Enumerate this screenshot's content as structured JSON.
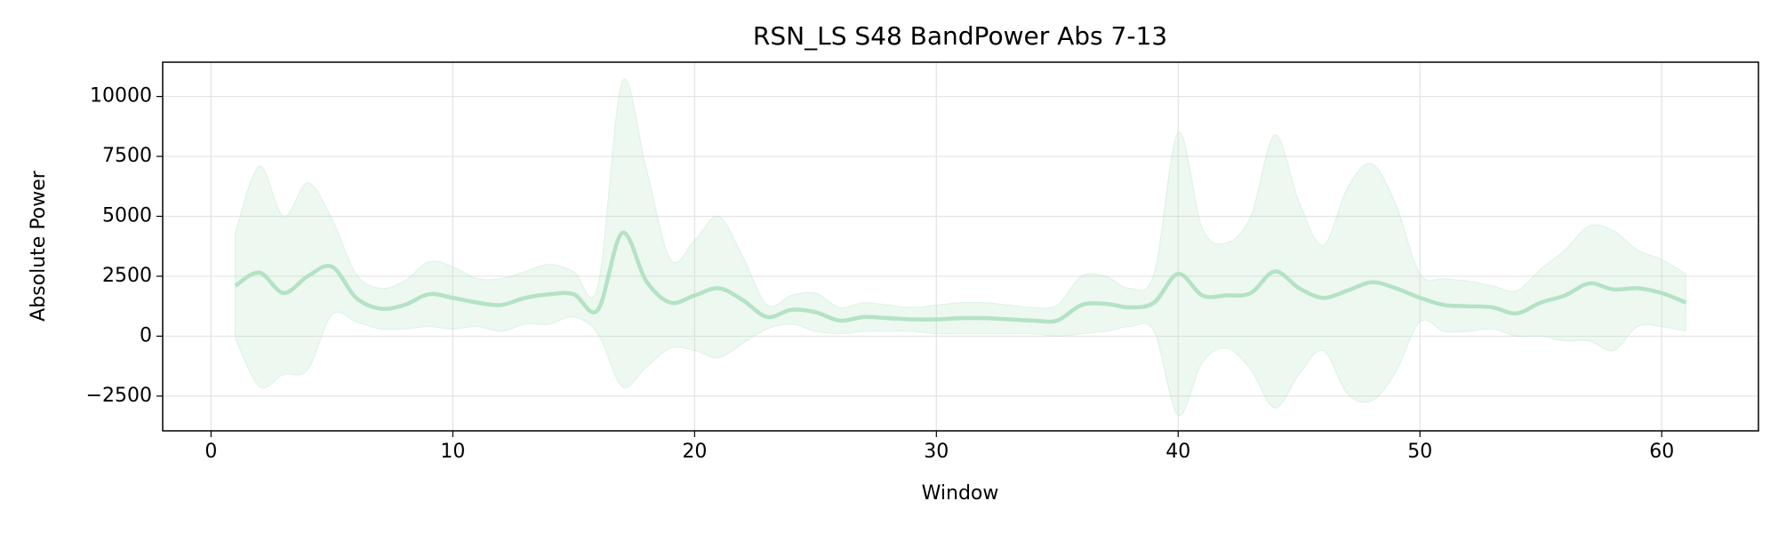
{
  "chart_data": {
    "type": "line",
    "title": "RSN_LS S48 BandPower Abs 7-13",
    "xlabel": "Window",
    "ylabel": "Absolute Power",
    "x": [
      1,
      2,
      3,
      4,
      5,
      6,
      7,
      8,
      9,
      10,
      11,
      12,
      13,
      14,
      15,
      16,
      17,
      18,
      19,
      20,
      21,
      22,
      23,
      24,
      25,
      26,
      27,
      28,
      29,
      30,
      31,
      32,
      33,
      34,
      35,
      36,
      37,
      38,
      39,
      40,
      41,
      42,
      43,
      44,
      45,
      46,
      47,
      48,
      49,
      50,
      51,
      52,
      53,
      54,
      55,
      56,
      57,
      58,
      59,
      60,
      61
    ],
    "series": [
      {
        "color": "#b4e2c5",
        "values": [
          2100,
          2650,
          1800,
          2500,
          2900,
          1600,
          1150,
          1300,
          1750,
          1600,
          1400,
          1300,
          1600,
          1750,
          1750,
          1100,
          4300,
          2300,
          1400,
          1700,
          2000,
          1500,
          800,
          1100,
          1000,
          650,
          800,
          750,
          700,
          700,
          750,
          750,
          700,
          650,
          650,
          1300,
          1350,
          1200,
          1400,
          2600,
          1700,
          1700,
          1800,
          2700,
          2000,
          1600,
          1900,
          2250,
          2000,
          1600,
          1300,
          1250,
          1200,
          950,
          1400,
          1700,
          2200,
          1950,
          2000,
          1800,
          1400
        ]
      }
    ],
    "band": {
      "color": "#b4e2c5",
      "upper": [
        4300,
        7100,
        5000,
        6400,
        4900,
        2600,
        2000,
        2300,
        3100,
        2900,
        2400,
        2400,
        2700,
        3000,
        2700,
        2100,
        10600,
        7000,
        3200,
        4000,
        5000,
        3300,
        1300,
        1700,
        1800,
        1200,
        1400,
        1300,
        1200,
        1300,
        1400,
        1400,
        1300,
        1200,
        1300,
        2500,
        2500,
        2000,
        2600,
        8500,
        4500,
        3900,
        5000,
        8400,
        5600,
        3800,
        6200,
        7200,
        5500,
        2600,
        2400,
        2300,
        2100,
        1900,
        2800,
        3600,
        4600,
        4400,
        3600,
        3200,
        2600
      ],
      "lower": [
        -100,
        -2100,
        -1600,
        -1400,
        900,
        600,
        300,
        300,
        400,
        300,
        400,
        200,
        500,
        500,
        800,
        100,
        -2100,
        -1300,
        -500,
        -600,
        -900,
        -300,
        300,
        500,
        200,
        100,
        200,
        200,
        200,
        100,
        100,
        100,
        100,
        100,
        0,
        100,
        200,
        400,
        200,
        -3300,
        -1100,
        -500,
        -1400,
        -3000,
        -1600,
        -600,
        -2400,
        -2700,
        -1500,
        600,
        200,
        200,
        300,
        0,
        0,
        -200,
        -200,
        -600,
        400,
        400,
        200
      ]
    },
    "xlim": [
      -2,
      64
    ],
    "ylim": [
      -3950,
      11430
    ],
    "xticks": [
      0,
      10,
      20,
      30,
      40,
      50,
      60
    ],
    "yticks": [
      {
        "value": -2500,
        "label": "−2500"
      },
      0,
      2500,
      5000,
      7500,
      10000
    ],
    "grid": true
  }
}
